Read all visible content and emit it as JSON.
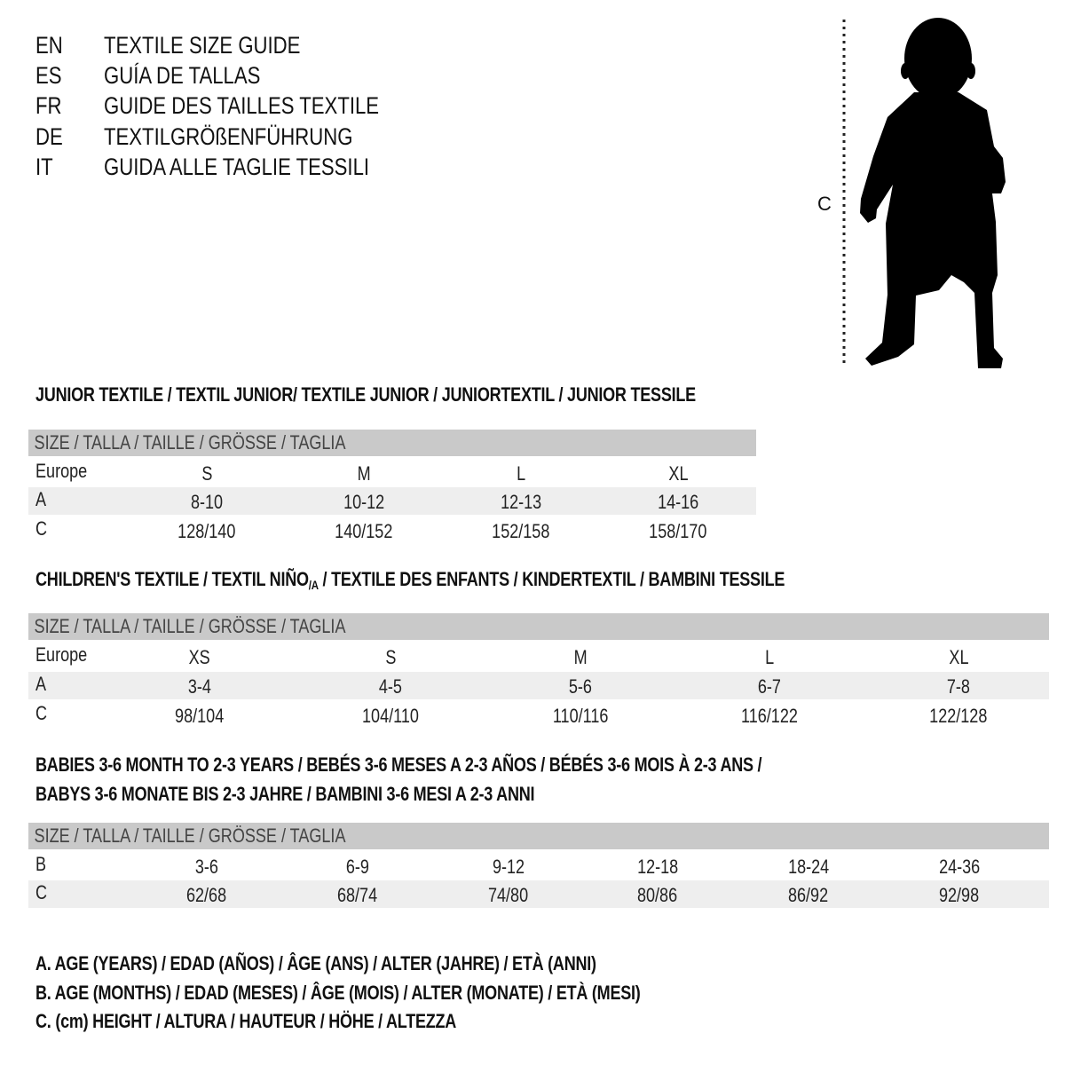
{
  "header": {
    "languages": [
      {
        "code": "EN",
        "title": "TEXTILE SIZE GUIDE"
      },
      {
        "code": "ES",
        "title": "GUÍA DE TALLAS"
      },
      {
        "code": "FR",
        "title": "GUIDE DES TAILLES TEXTILE"
      },
      {
        "code": "DE",
        "title": "TEXTILGRÖßENFÜHRUNG"
      },
      {
        "code": "IT",
        "title": "GUIDA ALLE TAGLIE TESSILI"
      }
    ]
  },
  "figure": {
    "label": "C",
    "icon": "child-silhouette-icon"
  },
  "tables": [
    {
      "heading": [
        "JUNIOR TEXTILE / TEXTIL JUNIOR/ TEXTILE JUNIOR / JUNIORTEXTIL / JUNIOR TESSILE"
      ],
      "size_header": "SIZE / TALLA / TAILLE / GRÖSSE / TAGLIA",
      "rows": [
        {
          "label": "Europe",
          "values": [
            "S",
            "M",
            "L",
            "XL"
          ]
        },
        {
          "label": "A",
          "values": [
            "8-10",
            "10-12",
            "12-13",
            "14-16"
          ]
        },
        {
          "label": "C",
          "values": [
            "128/140",
            "140/152",
            "152/158",
            "158/170"
          ]
        }
      ]
    },
    {
      "heading_parts": {
        "before": "CHILDREN'S TEXTILE / TEXTIL NIÑO",
        "sub": "/A",
        "after": " / TEXTILE DES ENFANTS / KINDERTEXTIL / BAMBINI TESSILE"
      },
      "size_header": "SIZE / TALLA / TAILLE / GRÖSSE / TAGLIA",
      "rows": [
        {
          "label": "Europe",
          "values": [
            "XS",
            "S",
            "M",
            "L",
            "XL"
          ]
        },
        {
          "label": "A",
          "values": [
            "3-4",
            "4-5",
            "5-6",
            "6-7",
            "7-8"
          ]
        },
        {
          "label": "C",
          "values": [
            "98/104",
            "104/110",
            "110/116",
            "116/122",
            "122/128"
          ]
        }
      ]
    },
    {
      "heading": [
        "BABIES 3-6 MONTH TO 2-3 YEARS / BEBÉS 3-6 MESES A 2-3 AÑOS / BÉBÉS 3-6 MOIS À 2-3 ANS /",
        "BABYS 3-6 MONATE BIS 2-3 JAHRE / BAMBINI 3-6 MESI A 2-3 ANNI"
      ],
      "size_header": "SIZE / TALLA / TAILLE / GRÖSSE / TAGLIA",
      "rows": [
        {
          "label": "B",
          "values": [
            "3-6",
            "6-9",
            "9-12",
            "12-18",
            "18-24",
            "24-36"
          ]
        },
        {
          "label": "C",
          "values": [
            "62/68",
            "68/74",
            "74/80",
            "80/86",
            "86/92",
            "92/98"
          ]
        }
      ]
    }
  ],
  "legend": [
    "A. AGE (YEARS) / EDAD (AÑOS) / ÂGE (ANS) / ALTER (JAHRE) / ETÀ (ANNI)",
    "B. AGE (MONTHS) / EDAD (MESES) / ÂGE (MOIS) / ALTER (MONATE) / ETÀ (MESI)",
    "C. (cm) HEIGHT / ALTURA / HAUTEUR / HÖHE / ALTEZZA"
  ],
  "colors": {
    "header_bar": "#c9c9c9",
    "shaded_row": "#eeeeee",
    "text": "#111111"
  }
}
